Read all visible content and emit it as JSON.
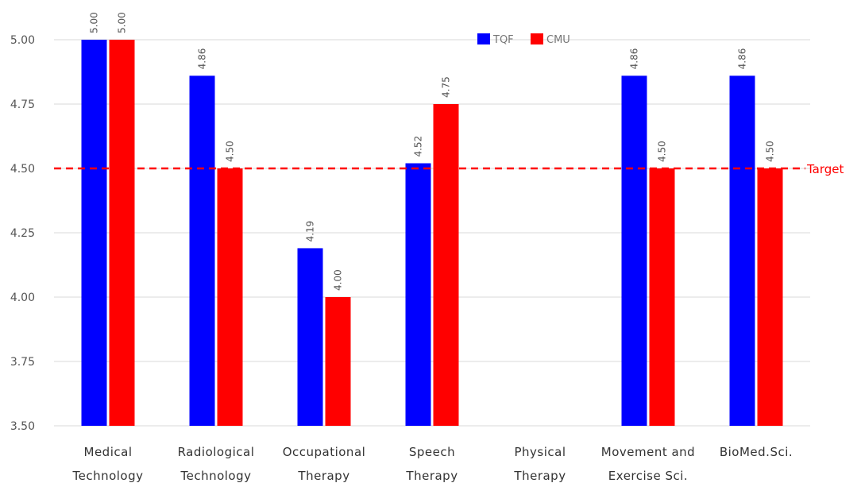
{
  "chart_data": {
    "type": "bar",
    "categories": [
      [
        "Medical",
        "Technology"
      ],
      [
        "Radiological",
        "Technology"
      ],
      [
        "Occupational",
        "Therapy"
      ],
      [
        "Speech",
        "Therapy"
      ],
      [
        "Physical",
        "Therapy"
      ],
      [
        "Movement and",
        "Exercise Sci."
      ],
      [
        "BioMed.Sci."
      ]
    ],
    "series": [
      {
        "name": "TQF",
        "color": "#0000ff",
        "values": [
          5.0,
          4.86,
          4.19,
          4.52,
          null,
          4.86,
          4.86
        ],
        "labels": [
          "5.00",
          "4.86",
          "4.19",
          "4.52",
          null,
          "4.86",
          "4.86"
        ]
      },
      {
        "name": "CMU",
        "color": "#ff0000",
        "values": [
          5.0,
          4.5,
          4.0,
          4.75,
          null,
          4.5,
          4.5
        ],
        "labels": [
          "5.00",
          "4.50",
          "4.00",
          "4.75",
          null,
          "4.50",
          "4.50"
        ]
      }
    ],
    "ylim": [
      3.5,
      5.0
    ],
    "yticks": [
      "3.50",
      "3.75",
      "4.00",
      "4.25",
      "4.50",
      "4.75",
      "5.00"
    ],
    "grid": true,
    "legend": "top-center",
    "target": {
      "value": 4.5,
      "label": "Target",
      "color": "#ff0000"
    }
  }
}
